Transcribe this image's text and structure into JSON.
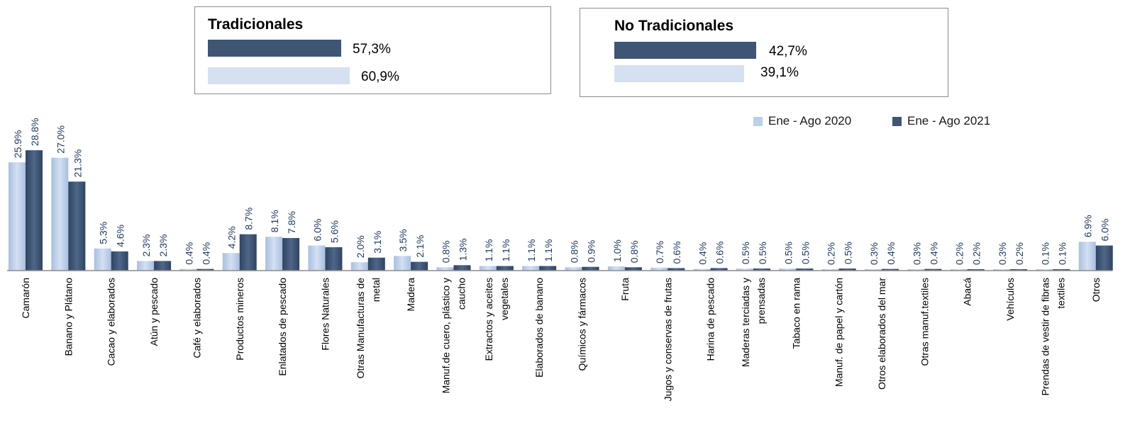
{
  "summary": {
    "traditional": {
      "title": "Tradicionales",
      "pct_2021": "57,3%",
      "pct_2020": "60,9%"
    },
    "non_traditional": {
      "title": "No Tradicionales",
      "pct_2021": "42,7%",
      "pct_2020": "39,1%"
    }
  },
  "colors": {
    "series_2020": "#bdd0ea",
    "series_2021": "#3f5574",
    "label": "#1f3b63",
    "axis": "#8c8c8c"
  },
  "chart_data": {
    "type": "bar",
    "title": "",
    "xlabel": "",
    "ylabel": "",
    "legend_position": "top-right",
    "ylim": [
      0,
      30
    ],
    "categories": [
      "Camarón",
      "Banano y Plátano",
      "Cacao y elaborados",
      "Atún y pescado",
      "Café y elaborados",
      "Productos mineros",
      "Enlatados de pescado",
      "Flores Naturales",
      "Otras Manufacturas de metal",
      "Madera",
      "Manuf.de cuero, plástico y caucho",
      "Extractos y aceites vegetales",
      "Elaborados de banano",
      "Químicos y fármacos",
      "Fruta",
      "Jugos y conservas de frutas",
      "Harina de pescado",
      "Maderas terciadas y prensadas",
      "Tabaco en rama",
      "Manuf. de papel y cartón",
      "Otros elaborados del mar",
      "Otras manuf.textiles",
      "Abacá",
      "Vehículos",
      "Prendas de vestir de fibras textiles",
      "Otros"
    ],
    "category_lines": [
      [
        "Camarón"
      ],
      [
        "Banano y Plátano"
      ],
      [
        "Cacao y elaborados"
      ],
      [
        "Atún y pescado"
      ],
      [
        "Café y elaborados"
      ],
      [
        "Productos mineros"
      ],
      [
        "Enlatados de pescado"
      ],
      [
        "Flores Naturales"
      ],
      [
        "Otras Manufacturas de",
        "metal"
      ],
      [
        "Madera"
      ],
      [
        "Manuf.de cuero, plástico y",
        "caucho"
      ],
      [
        "Extractos y aceites",
        "vegetales"
      ],
      [
        "Elaborados de banano"
      ],
      [
        "Químicos y fármacos"
      ],
      [
        "Fruta"
      ],
      [
        "Jugos y conservas de frutas"
      ],
      [
        "Harina de pescado"
      ],
      [
        "Maderas terciadas y",
        "prensadas"
      ],
      [
        "Tabaco en rama"
      ],
      [
        "Manuf. de papel y cartón"
      ],
      [
        "Otros elaborados del mar"
      ],
      [
        "Otras manuf.textiles"
      ],
      [
        "Abacá"
      ],
      [
        "Vehículos"
      ],
      [
        "Prendas de vestir de fibras",
        "textiles"
      ],
      [
        "Otros"
      ]
    ],
    "series": [
      {
        "name": "Ene - Ago 2020",
        "values": [
          25.9,
          27.0,
          5.3,
          2.3,
          0.4,
          4.2,
          8.1,
          6.0,
          2.0,
          3.5,
          0.8,
          1.1,
          1.1,
          0.8,
          1.0,
          0.7,
          0.4,
          0.5,
          0.5,
          0.2,
          0.3,
          0.3,
          0.2,
          0.3,
          0.1,
          6.9
        ],
        "labels": [
          "25.9%",
          "27.0%",
          "5.3%",
          "2.3%",
          "0.4%",
          "4.2%",
          "8.1%",
          "6.0%",
          "2.0%",
          "3.5%",
          "0.8%",
          "1.1%",
          "1.1%",
          "0.8%",
          "1.0%",
          "0.7%",
          "0.4%",
          "0.5%",
          "0.5%",
          "0.2%",
          "0.3%",
          "0.3%",
          "0.2%",
          "0.3%",
          "0.1%",
          "6.9%"
        ]
      },
      {
        "name": "Ene - Ago 2021",
        "values": [
          28.8,
          21.3,
          4.6,
          2.3,
          0.4,
          8.7,
          7.8,
          5.6,
          3.1,
          2.1,
          1.3,
          1.1,
          1.1,
          0.9,
          0.8,
          0.6,
          0.6,
          0.5,
          0.5,
          0.5,
          0.4,
          0.4,
          0.2,
          0.2,
          0.1,
          6.0
        ],
        "labels": [
          "28.8%",
          "21.3%",
          "4.6%",
          "2.3%",
          "0.4%",
          "8.7%",
          "7.8%",
          "5.6%",
          "3.1%",
          "2.1%",
          "1.3%",
          "1.1%",
          "1.1%",
          "0.9%",
          "0.8%",
          "0.6%",
          "0.6%",
          "0.5%",
          "0.5%",
          "0.5%",
          "0.4%",
          "0.4%",
          "0.2%",
          "0.2%",
          "0.1%",
          "6.0%"
        ]
      }
    ]
  }
}
